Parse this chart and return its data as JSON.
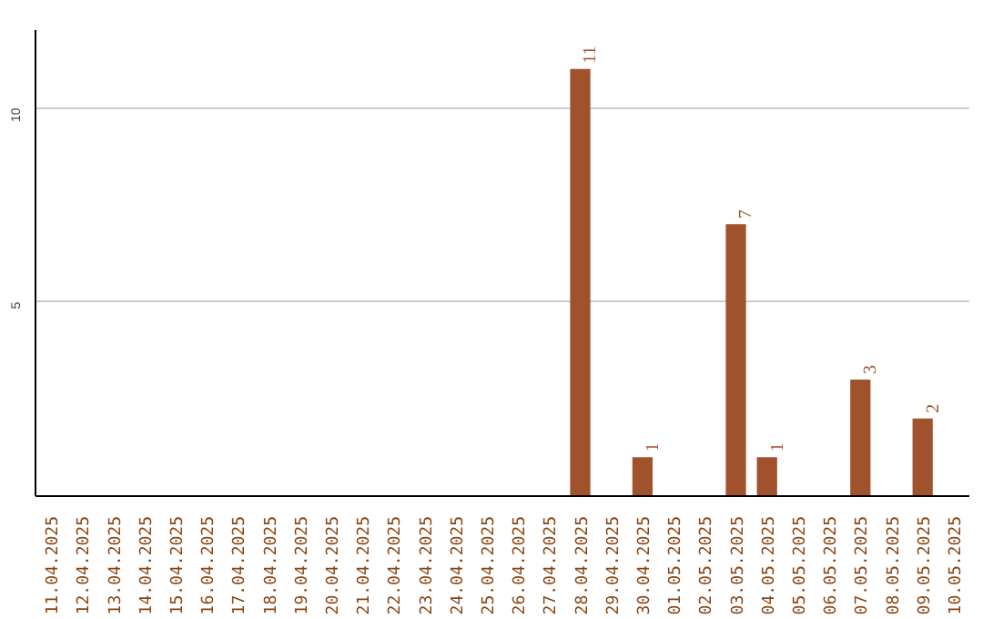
{
  "chart_data": {
    "type": "bar",
    "categories": [
      "11.04.2025",
      "12.04.2025",
      "13.04.2025",
      "14.04.2025",
      "15.04.2025",
      "16.04.2025",
      "17.04.2025",
      "18.04.2025",
      "19.04.2025",
      "20.04.2025",
      "21.04.2025",
      "22.04.2025",
      "23.04.2025",
      "24.04.2025",
      "25.04.2025",
      "26.04.2025",
      "27.04.2025",
      "28.04.2025",
      "29.04.2025",
      "30.04.2025",
      "01.05.2025",
      "02.05.2025",
      "03.05.2025",
      "04.05.2025",
      "05.05.2025",
      "06.05.2025",
      "07.05.2025",
      "08.05.2025",
      "09.05.2025",
      "10.05.2025"
    ],
    "values": [
      0,
      0,
      0,
      0,
      0,
      0,
      0,
      0,
      0,
      0,
      0,
      0,
      0,
      0,
      0,
      0,
      0,
      11,
      0,
      1,
      0,
      0,
      7,
      1,
      0,
      0,
      3,
      0,
      2,
      0
    ],
    "value_labels": [
      null,
      null,
      null,
      null,
      null,
      null,
      null,
      null,
      null,
      null,
      null,
      null,
      null,
      null,
      null,
      null,
      null,
      "11",
      null,
      "1",
      null,
      null,
      "7",
      "1",
      null,
      null,
      "3",
      null,
      "2",
      null
    ],
    "color": "#a0522d",
    "ylim": [
      0,
      12
    ],
    "yticks": [
      {
        "value": 0,
        "label": null
      },
      5,
      10
    ],
    "grid": "y"
  }
}
